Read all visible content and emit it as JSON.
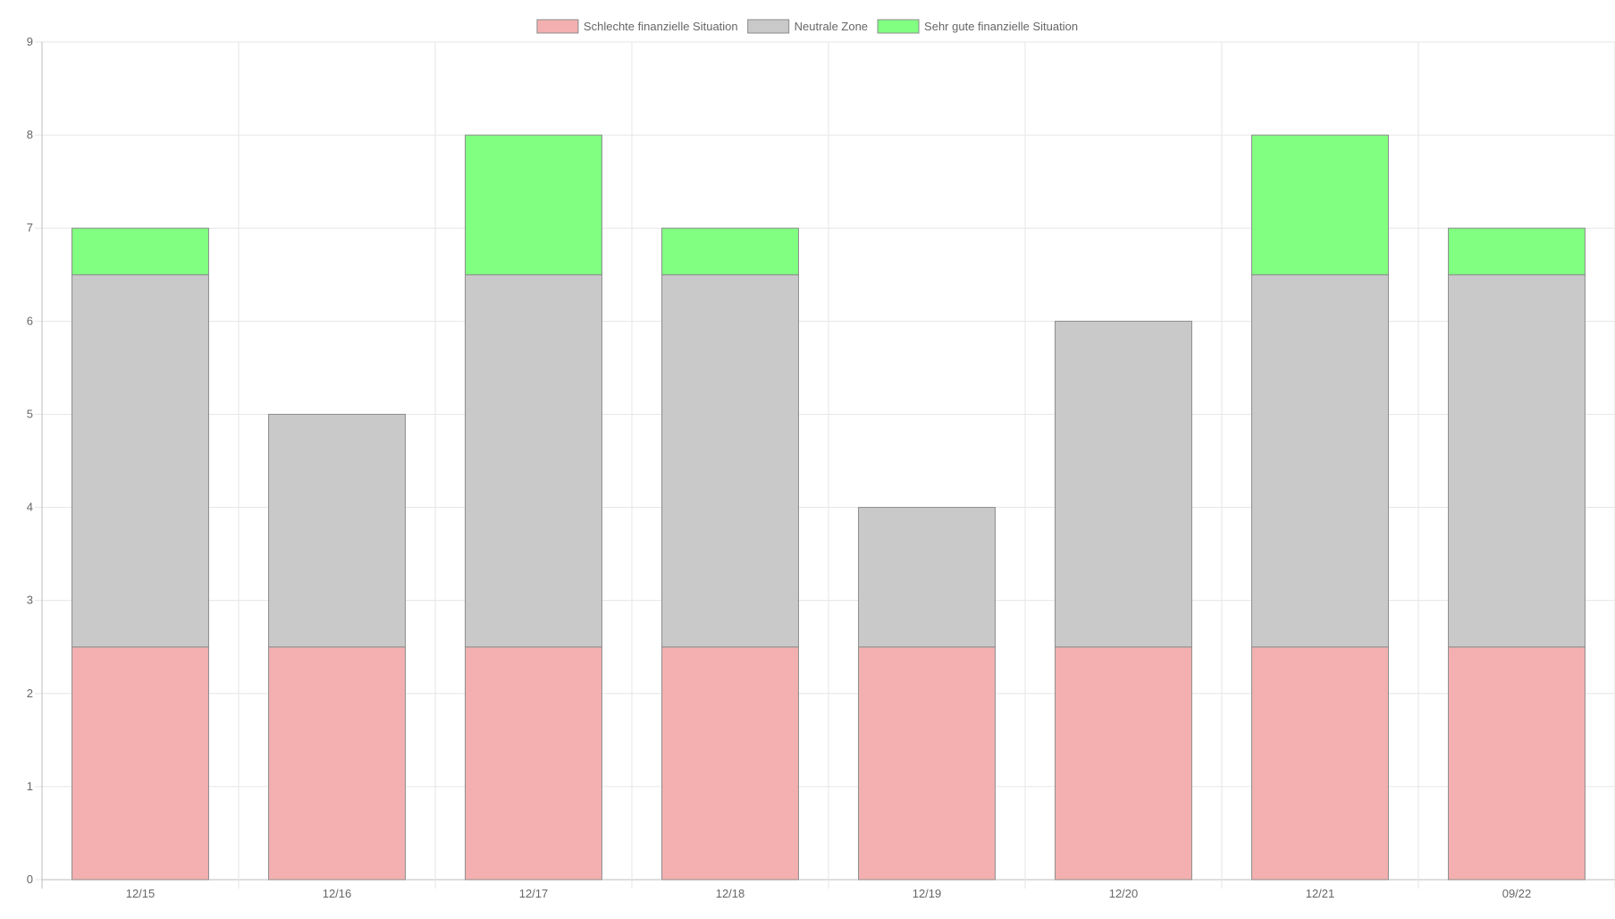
{
  "chart_data": {
    "type": "bar",
    "stacked": true,
    "categories": [
      "12/15",
      "12/16",
      "12/17",
      "12/18",
      "12/19",
      "12/20",
      "12/21",
      "09/22"
    ],
    "series": [
      {
        "name": "Schlechte finanzielle Situation",
        "color": "#f4b0b0",
        "values": [
          2.5,
          2.5,
          2.5,
          2.5,
          2.5,
          2.5,
          2.5,
          2.5
        ]
      },
      {
        "name": "Neutrale Zone",
        "color": "#c9c9c9",
        "values": [
          4,
          2.5,
          4,
          4,
          1.5,
          3.5,
          4,
          4
        ]
      },
      {
        "name": "Sehr gute finanzielle Situation",
        "color": "#80ff80",
        "values": [
          0.5,
          0,
          1.5,
          0.5,
          0,
          0,
          1.5,
          0.5
        ]
      }
    ],
    "ylim": [
      0,
      9
    ],
    "yticks": [
      "0",
      "1",
      "2",
      "3",
      "4",
      "5",
      "6",
      "7",
      "8",
      "9"
    ],
    "grid": true,
    "legend_position": "top-center",
    "bar_border_color": "#8c8c8c"
  }
}
